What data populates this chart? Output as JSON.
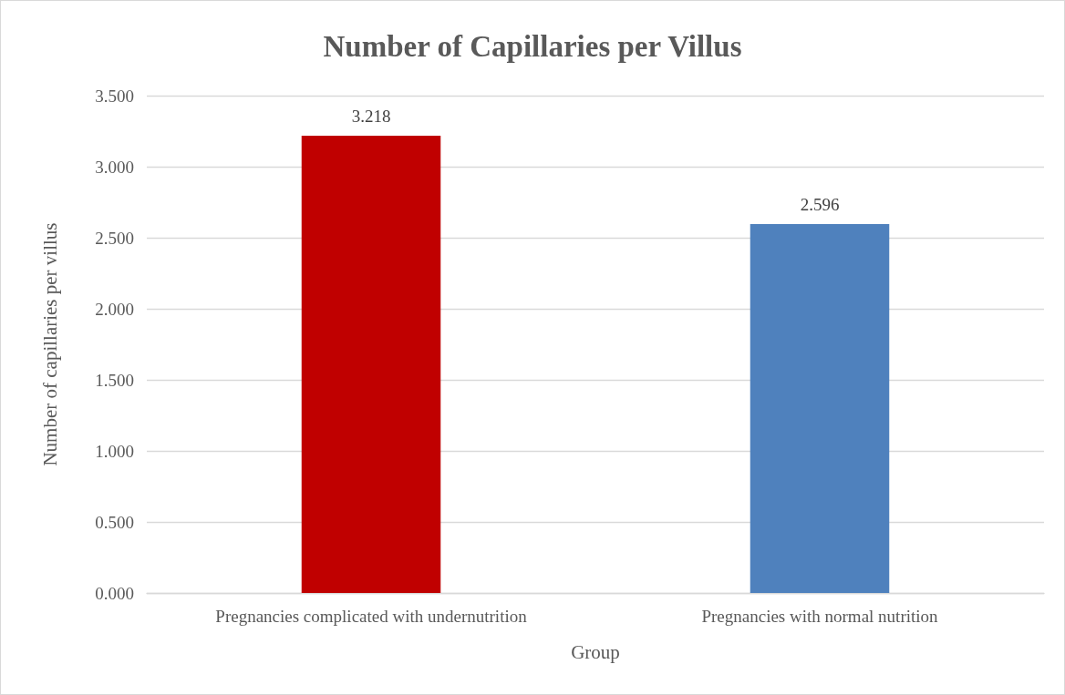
{
  "chart_data": {
    "type": "bar",
    "title": "Number of Capillaries per Villus",
    "xlabel": "Group",
    "ylabel": "Number of capillaries per villus",
    "categories": [
      "Pregnancies complicated with undernutrition",
      "Pregnancies with normal nutrition"
    ],
    "values": [
      3.218,
      2.596
    ],
    "colors": [
      "#c00000",
      "#4f81bd"
    ],
    "ylim": [
      0,
      3.5
    ],
    "yticks": [
      {
        "value": 0,
        "label": "0.000"
      },
      {
        "value": 0.5,
        "label": "0.500"
      },
      {
        "value": 1,
        "label": "1.000"
      },
      {
        "value": 1.5,
        "label": "1.500"
      },
      {
        "value": 2,
        "label": "2.000"
      },
      {
        "value": 2.5,
        "label": "2.500"
      },
      {
        "value": 3,
        "label": "3.000"
      },
      {
        "value": 3.5,
        "label": "3.500"
      }
    ],
    "grid": "y",
    "data_labels": true
  }
}
